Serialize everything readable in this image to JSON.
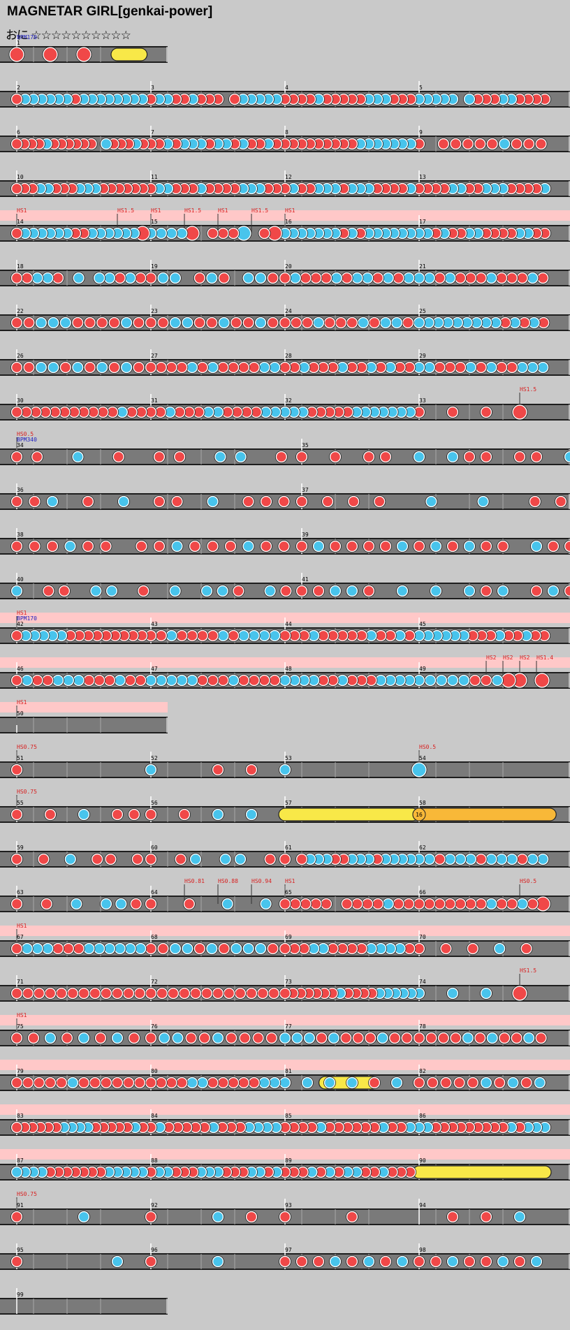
{
  "song": {
    "title": "MAGNETAR GIRL[genkai-power]",
    "course": "おに",
    "stars": "☆☆☆☆☆☆☆☆☆☆"
  },
  "colors": {
    "background": "#c9c9c9",
    "lane": "#7a7a7a",
    "lane_border": "#1e1e1e",
    "don": "#f04848",
    "ka": "#48c4ec",
    "roll": "#f8e848",
    "balloon": "#f8b838",
    "gogo": "#ffc8c8",
    "annotation_hs": "#d82020",
    "annotation_bpm": "#2020c0"
  },
  "balloon_count": "16",
  "rows": [
    {
      "measures": [
        1
      ],
      "spans": 1,
      "hs": [],
      "bpm": [
        {
          "b": 0,
          "t": "BPM170"
        }
      ],
      "notes": [
        {
          "m": 0,
          "b": 0,
          "t": "D"
        },
        {
          "m": 0,
          "b": 1,
          "t": "D"
        },
        {
          "m": 0,
          "b": 2,
          "t": "D"
        },
        {
          "m": 0,
          "b": 3,
          "t": "roll",
          "e": 3.7
        }
      ]
    },
    {
      "measures": [
        2,
        3,
        4,
        5
      ],
      "spans": 4,
      "dense": [
        "dkkkkkkdkkkkkkkk",
        "dkkddkddd dkkkkk",
        "ddddkdddddkkkddd",
        "kkkkk kdddkkdddd"
      ]
    },
    {
      "measures": [
        6,
        7,
        8,
        9
      ],
      "spans": 4,
      "dense": [
        "ddddkdddddd kdddkd",
        "ddkdkkkdkkdkddkd",
        "dddddddddkkkkkkk",
        "d dddddkddd"
      ]
    },
    {
      "measures": [
        10,
        11,
        12,
        13
      ],
      "spans": 4,
      "dense": [
        "dddkkdddkkkdddddd",
        "dkkdddkddddkkkdd",
        "dkddkkkdkkkddddk",
        "ddddkkddkkkddddk"
      ]
    },
    {
      "measures": [
        14,
        15,
        16,
        17
      ],
      "spans": 4,
      "gogo": true,
      "hs": [
        {
          "b": 0,
          "t": "HS1"
        },
        {
          "b": 3,
          "t": "HS1.5"
        },
        {
          "b": 4,
          "t": "HS1"
        },
        {
          "b": 5,
          "t": "HS1.5"
        },
        {
          "b": 6,
          "t": "HS1"
        },
        {
          "b": 7,
          "t": "HS1.5"
        },
        {
          "b": 8,
          "t": "HS1"
        }
      ],
      "dense": [
        "dkkkkkkddkkkkkkD",
        "kkkkD dddK dD",
        "kkkkkkkdkdkkkkkk",
        "kkdkddkkddddkkdd"
      ]
    },
    {
      "measures": [
        18,
        19,
        20,
        21
      ],
      "spans": 4,
      "dense": [
        "ddkkd k kkdkd",
        "dkk dkd kkd",
        "dkdddkdkkdkdk",
        "kkdkdddkdddkd"
      ]
    },
    {
      "measures": [
        22,
        23,
        24,
        25
      ],
      "spans": 4,
      "dense": [
        "ddkkkddddkd",
        "ddkkddkddkd",
        "dddkdddkdkkd",
        "kkkkkkkkkdkdkd"
      ]
    },
    {
      "measures": [
        26,
        27,
        28,
        29
      ],
      "spans": 4,
      "dense": [
        "ddkkdkdkdkd",
        "ddddkdkddddkk",
        "ddkdddkddkdkdd",
        "kkdddkdkddkkk"
      ]
    },
    {
      "measures": [
        30,
        31,
        32,
        33
      ],
      "spans": 4,
      "hs": [
        {
          "b": 15,
          "t": "HS1.5"
        }
      ],
      "dense": [
        "dddddddddddkdd",
        "ddkdddkkddddkk",
        "kkkdddddkkkkkkk",
        "dddD"
      ]
    },
    {
      "measures": [
        34,
        35
      ],
      "spans": 4,
      "hs": [
        {
          "b": 0,
          "t": "HS0.5"
        }
      ],
      "bpm": [
        {
          "b": 0,
          "t": "BPM340"
        }
      ],
      "dense": [
        "dd k d dd kk d",
        "d d dd k kdd dd k",
        "dkkddd kdkdd dk"
      ]
    },
    {
      "measures": [
        36,
        37
      ],
      "spans": 4,
      "dense": [
        "ddk d k dd k ddd",
        "dddd k k dd",
        "kkk dkdkdd kdd kk"
      ]
    },
    {
      "measures": [
        38,
        39
      ],
      "spans": 4,
      "dense": [
        "dddkdd ddkdddkdd",
        "dkddddkdkdkdd kdd",
        "kdkdkkdkdd"
      ]
    },
    {
      "measures": [
        40,
        41
      ],
      "spans": 4,
      "dense": [
        "k dd kk d k kkd kd",
        "ddkkd k k kdk dkd",
        "dd"
      ]
    },
    {
      "measures": [
        42,
        43,
        44,
        45
      ],
      "spans": 4,
      "gogo": true,
      "hs": [
        {
          "b": 0,
          "t": "HS1"
        }
      ],
      "bpm": [
        {
          "b": 0,
          "t": "BPM170"
        }
      ],
      "dense": [
        "dkkkkkddddddddd",
        "ddkddddkdkkkk",
        "dddkdddddkddkd",
        "kkkkkkdddkddkdd"
      ]
    },
    {
      "measures": [
        46,
        47,
        48,
        49
      ],
      "spans": 4,
      "gogo": true,
      "hs": [
        {
          "b": 14,
          "t": "HS2"
        },
        {
          "b": 14.5,
          "t": "HS2"
        },
        {
          "b": 15,
          "t": "HS2"
        },
        {
          "b": 15.5,
          "t": "HS1.4"
        }
      ],
      "dense": [
        "dkddkkkdddkdd",
        "kkkkkdddkdddd",
        "kkkkddkdddkkkk",
        "kkkkkddkDD D"
      ]
    },
    {
      "measures": [
        50
      ],
      "spans": 1,
      "gogo": true,
      "hs": [
        {
          "b": 0,
          "t": "HS1"
        }
      ],
      "notes": []
    },
    {
      "measures": [
        51,
        52,
        53,
        54
      ],
      "spans": 4,
      "hs": [
        {
          "b": 0,
          "t": "HS0.75"
        },
        {
          "b": 12,
          "t": "HS0.5"
        }
      ],
      "notes": [
        {
          "m": 0,
          "b": 0,
          "t": "d"
        },
        {
          "m": 1,
          "b": 0,
          "t": "k"
        },
        {
          "m": 1,
          "b": 2,
          "t": "d"
        },
        {
          "m": 1,
          "b": 3,
          "t": "d"
        },
        {
          "m": 2,
          "b": 0,
          "t": "k"
        },
        {
          "m": 3,
          "b": 0,
          "t": "K"
        }
      ]
    },
    {
      "measures": [
        55,
        56,
        57,
        58
      ],
      "spans": 4,
      "hs": [
        {
          "b": 0,
          "t": "HS0.75"
        }
      ],
      "notes": [
        {
          "m": 0,
          "b": 0,
          "t": "d"
        },
        {
          "m": 0,
          "b": 1,
          "t": "d"
        },
        {
          "m": 0,
          "b": 2,
          "t": "k"
        },
        {
          "m": 0,
          "b": 3,
          "t": "d"
        },
        {
          "m": 0,
          "b": 3.5,
          "t": "d"
        },
        {
          "m": 1,
          "b": 0,
          "t": "d"
        },
        {
          "m": 1,
          "b": 1,
          "t": "d"
        },
        {
          "m": 1,
          "b": 2,
          "t": "k"
        },
        {
          "m": 1,
          "b": 3,
          "t": "k"
        },
        {
          "m": 2,
          "b": 0,
          "t": "roll",
          "e": 3.8
        },
        {
          "m": 3,
          "b": 0,
          "t": "balloon",
          "e": 3.9
        }
      ]
    },
    {
      "measures": [
        59,
        60,
        61,
        62
      ],
      "spans": 4,
      "dense": [
        "d d k dd d",
        "d dk kk d",
        "d dkkkddkkkdkkkk",
        "kkdkkkdkkkdkk"
      ]
    },
    {
      "measures": [
        63,
        64,
        65,
        66
      ],
      "spans": 4,
      "hs": [
        {
          "b": 5,
          "t": "HS0.81"
        },
        {
          "b": 6,
          "t": "HS0.88"
        },
        {
          "b": 7,
          "t": "HS0.94"
        },
        {
          "b": 8,
          "t": "HS1"
        },
        {
          "b": 15,
          "t": "HS0.5"
        }
      ],
      "dense": [
        "d d k kkd",
        "d d k k",
        "ddddd ddddkdd",
        "dddddddkddkdD"
      ]
    },
    {
      "measures": [
        67,
        68,
        69,
        70
      ],
      "spans": 4,
      "gogo": true,
      "hs": [
        {
          "b": 0,
          "t": "HS1"
        }
      ],
      "dense": [
        "dkkkdddkkkkkk",
        "ddkkdkdkkkd",
        "dddkkddddkkkkd",
        "dddkd"
      ]
    },
    {
      "measures": [
        71,
        72,
        73,
        74
      ],
      "spans": 4,
      "hs": [
        {
          "b": 15,
          "t": "HS1.5"
        }
      ],
      "dense": [
        "dddddddddddd",
        "dddddddddddd",
        "dddddddkddddkkkkk",
        "kkkD"
      ]
    },
    {
      "measures": [
        75,
        76,
        77,
        78
      ],
      "spans": 4,
      "gogo": true,
      "hs": [
        {
          "b": 0,
          "t": "HS1"
        }
      ],
      "dense": [
        "ddkdkdkd",
        "dkkddkdddd",
        "kkkdkdddkdd",
        "ddddkdkddkd"
      ]
    },
    {
      "measures": [
        79,
        80,
        81,
        82
      ],
      "spans": 4,
      "gogo": true,
      "notes_extra": [
        {
          "m": 2,
          "b": 1.2,
          "t": "roll",
          "e": 2.6
        }
      ],
      "dense": [
        "dddddkdddddd",
        "ddddkkdddddkk",
        "kkkkdk",
        "dddddkdkdk"
      ]
    },
    {
      "measures": [
        83,
        84,
        85,
        86
      ],
      "spans": 4,
      "gogo": true,
      "dense": [
        "ddddddkkkkdddddkd",
        "dkdddddkdddkkkk",
        "ddddkddddddkddk",
        "kkdddddddddkdkkk"
      ]
    },
    {
      "measures": [
        87,
        88,
        89,
        90
      ],
      "spans": 4,
      "gogo": true,
      "notes_extra": [
        {
          "m": 3,
          "b": 0,
          "t": "roll",
          "e": 3.75
        }
      ],
      "dense": [
        "kkkkdddddddkkkkk",
        "dkkdddkkkdddkkdk",
        "dddkdkdkkddkddd",
        ""
      ]
    },
    {
      "measures": [
        91,
        92,
        93,
        94
      ],
      "spans": 4,
      "hs": [
        {
          "b": 0,
          "t": "HS0.75"
        }
      ],
      "notes": [
        {
          "m": 0,
          "b": 0,
          "t": "d"
        },
        {
          "m": 0,
          "b": 2,
          "t": "k"
        },
        {
          "m": 1,
          "b": 0,
          "t": "d"
        },
        {
          "m": 1,
          "b": 2,
          "t": "k"
        },
        {
          "m": 1,
          "b": 3,
          "t": "d"
        },
        {
          "m": 2,
          "b": 0,
          "t": "d"
        },
        {
          "m": 2,
          "b": 2,
          "t": "d"
        },
        {
          "m": 3,
          "b": 1,
          "t": "d"
        },
        {
          "m": 3,
          "b": 2,
          "t": "d"
        },
        {
          "m": 3,
          "b": 3,
          "t": "k"
        }
      ]
    },
    {
      "measures": [
        95,
        96,
        97,
        98
      ],
      "spans": 4,
      "notes": [
        {
          "m": 0,
          "b": 0,
          "t": "d"
        },
        {
          "m": 0,
          "b": 3,
          "t": "k"
        },
        {
          "m": 1,
          "b": 0,
          "t": "d"
        },
        {
          "m": 1,
          "b": 2,
          "t": "k"
        },
        {
          "m": 2,
          "b": 0,
          "t": "d"
        },
        {
          "m": 2,
          "b": 0.5,
          "t": "d"
        },
        {
          "m": 2,
          "b": 1,
          "t": "d"
        },
        {
          "m": 2,
          "b": 1.5,
          "t": "k"
        },
        {
          "m": 2,
          "b": 2,
          "t": "d"
        },
        {
          "m": 2,
          "b": 2.5,
          "t": "k"
        },
        {
          "m": 2,
          "b": 3,
          "t": "d"
        },
        {
          "m": 2,
          "b": 3.5,
          "t": "k"
        },
        {
          "m": 3,
          "b": 0,
          "t": "d"
        },
        {
          "m": 3,
          "b": 0.5,
          "t": "d"
        },
        {
          "m": 3,
          "b": 1,
          "t": "k"
        },
        {
          "m": 3,
          "b": 1.5,
          "t": "d"
        },
        {
          "m": 3,
          "b": 2,
          "t": "d"
        },
        {
          "m": 3,
          "b": 2.5,
          "t": "k"
        },
        {
          "m": 3,
          "b": 3,
          "t": "d"
        },
        {
          "m": 3,
          "b": 3.5,
          "t": "k"
        }
      ]
    },
    {
      "measures": [
        99
      ],
      "spans": 1,
      "notes": []
    }
  ]
}
